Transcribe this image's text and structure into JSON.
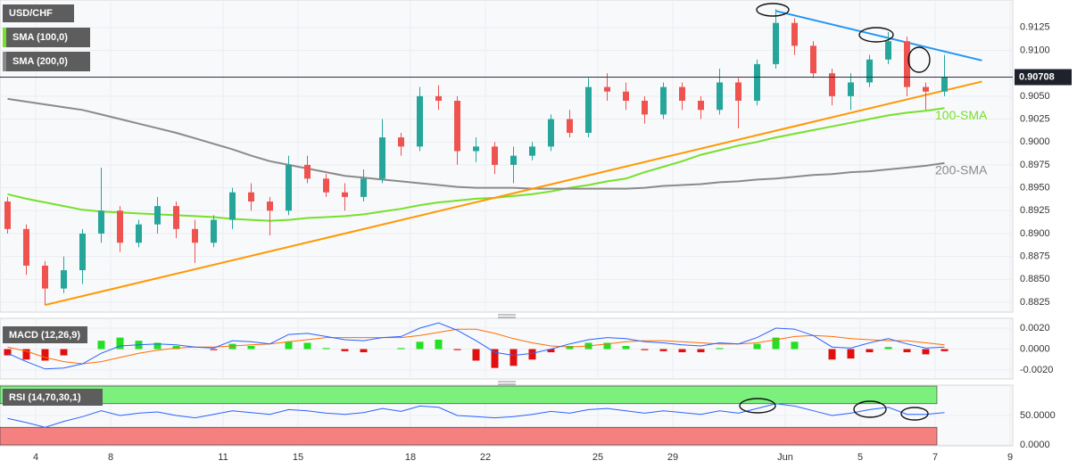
{
  "chart_data": {
    "type": "candlestick",
    "categories": [
      null,
      null,
      "4",
      null,
      null,
      null,
      "8",
      null,
      null,
      null,
      null,
      null,
      "11",
      null,
      null,
      null,
      "15",
      null,
      null,
      null,
      null,
      null,
      "18",
      null,
      null,
      null,
      "22",
      null,
      null,
      null,
      null,
      null,
      "25",
      null,
      null,
      null,
      "29",
      null,
      null,
      null,
      null,
      null,
      "Jun",
      null,
      null,
      null,
      "5",
      null,
      null,
      null,
      "7",
      null,
      null,
      null,
      "9"
    ],
    "candles": {
      "name": "USD/CHF",
      "up_color": "#26a69a",
      "down_color": "#ef5350",
      "ohlc": [
        [
          0.8935,
          0.894,
          0.89,
          0.8905
        ],
        [
          0.8905,
          0.891,
          0.8855,
          0.8865
        ],
        [
          0.8865,
          0.887,
          0.8822,
          0.884
        ],
        [
          0.884,
          0.8875,
          0.8835,
          0.886
        ],
        [
          0.886,
          0.8905,
          0.8845,
          0.89
        ],
        [
          0.89,
          0.8972,
          0.889,
          0.8925
        ],
        [
          0.8925,
          0.893,
          0.888,
          0.889
        ],
        [
          0.889,
          0.8915,
          0.8885,
          0.891
        ],
        [
          0.891,
          0.894,
          0.89,
          0.893
        ],
        [
          0.893,
          0.8935,
          0.8895,
          0.8905
        ],
        [
          0.8905,
          0.8915,
          0.8868,
          0.889
        ],
        [
          0.889,
          0.892,
          0.8885,
          0.8915
        ],
        [
          0.8915,
          0.895,
          0.8905,
          0.8945
        ],
        [
          0.8945,
          0.8955,
          0.8925,
          0.8935
        ],
        [
          0.8935,
          0.894,
          0.8898,
          0.8925
        ],
        [
          0.8925,
          0.8985,
          0.892,
          0.8975
        ],
        [
          0.8975,
          0.8985,
          0.8955,
          0.896
        ],
        [
          0.896,
          0.8965,
          0.894,
          0.8945
        ],
        [
          0.8945,
          0.8955,
          0.8925,
          0.894
        ],
        [
          0.894,
          0.897,
          0.8935,
          0.896
        ],
        [
          0.896,
          0.9025,
          0.8955,
          0.9005
        ],
        [
          0.9005,
          0.901,
          0.8985,
          0.8995
        ],
        [
          0.8995,
          0.906,
          0.899,
          0.905
        ],
        [
          0.905,
          0.9062,
          0.9035,
          0.9045
        ],
        [
          0.9045,
          0.905,
          0.8975,
          0.899
        ],
        [
          0.899,
          0.9005,
          0.8978,
          0.8995
        ],
        [
          0.8995,
          0.9,
          0.8965,
          0.8975
        ],
        [
          0.8975,
          0.8995,
          0.8955,
          0.8985
        ],
        [
          0.8985,
          0.9,
          0.898,
          0.8995
        ],
        [
          0.8995,
          0.903,
          0.899,
          0.9025
        ],
        [
          0.9025,
          0.9035,
          0.9005,
          0.901
        ],
        [
          0.901,
          0.907,
          0.9005,
          0.906
        ],
        [
          0.906,
          0.9075,
          0.9045,
          0.9055
        ],
        [
          0.9055,
          0.9065,
          0.9035,
          0.9045
        ],
        [
          0.9045,
          0.905,
          0.902,
          0.903
        ],
        [
          0.903,
          0.9065,
          0.9025,
          0.906
        ],
        [
          0.906,
          0.9065,
          0.9035,
          0.9045
        ],
        [
          0.9045,
          0.905,
          0.9025,
          0.9035
        ],
        [
          0.9035,
          0.908,
          0.903,
          0.9065
        ],
        [
          0.9065,
          0.907,
          0.9015,
          0.9045
        ],
        [
          0.9045,
          0.909,
          0.904,
          0.9085
        ],
        [
          0.9085,
          0.9145,
          0.908,
          0.913
        ],
        [
          0.913,
          0.9135,
          0.9095,
          0.9105
        ],
        [
          0.9105,
          0.911,
          0.907,
          0.9075
        ],
        [
          0.9075,
          0.908,
          0.904,
          0.905
        ],
        [
          0.905,
          0.9075,
          0.9035,
          0.9065
        ],
        [
          0.9065,
          0.9095,
          0.906,
          0.909
        ],
        [
          0.909,
          0.912,
          0.9085,
          0.911
        ],
        [
          0.911,
          0.9115,
          0.905,
          0.906
        ],
        [
          0.906,
          0.9065,
          0.9035,
          0.9055
        ],
        [
          0.9055,
          0.9095,
          0.905,
          0.90708
        ],
        null,
        null,
        null,
        null
      ]
    },
    "overlays": [
      {
        "name": "SMA (100,0)",
        "label": "100-SMA",
        "color": "#76e02a",
        "values": [
          0.8943,
          0.8938,
          0.8934,
          0.893,
          0.8926,
          0.8924,
          0.8923,
          0.8922,
          0.8921,
          0.892,
          0.8919,
          0.8918,
          0.8916,
          0.8915,
          0.8914,
          0.8915,
          0.8917,
          0.8918,
          0.8919,
          0.8921,
          0.8924,
          0.8927,
          0.8931,
          0.8934,
          0.8936,
          0.8938,
          0.8939,
          0.8941,
          0.8943,
          0.8946,
          0.895,
          0.8953,
          0.8957,
          0.896,
          0.8967,
          0.8973,
          0.8979,
          0.8986,
          0.8991,
          0.8996,
          0.9,
          0.9005,
          0.9009,
          0.9013,
          0.9017,
          0.9021,
          0.9025,
          0.9029,
          0.9032,
          0.9034,
          0.9037,
          null,
          null,
          null,
          null
        ]
      },
      {
        "name": "SMA (200,0)",
        "label": "200-SMA",
        "color": "#8a8a8a",
        "values": [
          0.9047,
          0.9044,
          0.9041,
          0.9038,
          0.9035,
          0.903,
          0.9025,
          0.902,
          0.9015,
          0.901,
          0.9004,
          0.8998,
          0.8992,
          0.8985,
          0.8979,
          0.8975,
          0.8971,
          0.8967,
          0.8963,
          0.8961,
          0.8959,
          0.8957,
          0.8955,
          0.8953,
          0.8951,
          0.895,
          0.895,
          0.895,
          0.8949,
          0.8949,
          0.8949,
          0.8949,
          0.8949,
          0.8949,
          0.895,
          0.8952,
          0.8953,
          0.8954,
          0.8956,
          0.8957,
          0.8959,
          0.896,
          0.8962,
          0.8964,
          0.8965,
          0.8967,
          0.8968,
          0.897,
          0.8972,
          0.8974,
          0.8977,
          null,
          null,
          null,
          null
        ]
      }
    ],
    "trend_lines": [
      {
        "color": "#ff9800",
        "values": [
          null,
          null,
          0.8822,
          null,
          null,
          null,
          null,
          null,
          null,
          null,
          null,
          null,
          null,
          null,
          null,
          null,
          null,
          null,
          null,
          null,
          null,
          null,
          null,
          null,
          null,
          null,
          null,
          null,
          null,
          null,
          null,
          null,
          null,
          null,
          null,
          null,
          null,
          null,
          null,
          null,
          null,
          null,
          null,
          null,
          null,
          null,
          null,
          null,
          null,
          null,
          null,
          null,
          0.9066,
          null,
          null
        ]
      },
      {
        "color": "#2196f3",
        "values": [
          null,
          null,
          null,
          null,
          null,
          null,
          null,
          null,
          null,
          null,
          null,
          null,
          null,
          null,
          null,
          null,
          null,
          null,
          null,
          null,
          null,
          null,
          null,
          null,
          null,
          null,
          null,
          null,
          null,
          null,
          null,
          null,
          null,
          null,
          null,
          null,
          null,
          null,
          null,
          null,
          null,
          0.9143,
          null,
          null,
          null,
          null,
          null,
          null,
          null,
          null,
          null,
          null,
          0.9089,
          null,
          null
        ]
      }
    ],
    "ylim": [
      0.88143,
      0.9155
    ],
    "yticks": [
      0.9125,
      {
        "value": 0.91,
        "label": "0.9100"
      },
      {
        "value": 0.905,
        "label": "0.9050"
      },
      0.9025,
      {
        "value": 0.9,
        "label": "0.9000"
      },
      0.8975,
      {
        "value": 0.895,
        "label": "0.8950"
      },
      0.8925,
      {
        "value": 0.89,
        "label": "0.8900"
      },
      0.8875,
      {
        "value": 0.885,
        "label": "0.8850"
      },
      0.8825
    ],
    "last_price": 0.90708,
    "grid": true,
    "macd": {
      "title": "MACD (12,26,9)",
      "ylim": [
        -0.00285,
        0.00294
      ],
      "yticks": [
        {
          "value": 0.002,
          "label": "0.0020"
        },
        {
          "value": 0,
          "label": "0.0000"
        },
        {
          "value": -0.002,
          "label": "-0.0020"
        }
      ],
      "macd": {
        "color": "#2962ff",
        "values": [
          -0.0004,
          -0.0012,
          -0.0019,
          -0.0018,
          -0.0014,
          -0.0004,
          0.0003,
          0.0004,
          0.0005,
          0.0004,
          0.0002,
          0.0001,
          0.0008,
          0.0007,
          0.0005,
          0.0014,
          0.0015,
          0.0012,
          0.0009,
          0.0008,
          0.0011,
          0.0012,
          0.002,
          0.0025,
          0.0018,
          0.0008,
          -0.0003,
          -0.0006,
          -0.0004,
          0.0,
          0.0005,
          0.0009,
          0.0011,
          0.001,
          0.0007,
          0.0006,
          0.0004,
          0.0003,
          0.0006,
          0.0005,
          0.0011,
          0.002,
          0.0019,
          0.0013,
          0.0002,
          0.0001,
          0.0006,
          0.001,
          0.0005,
          0.0001,
          0.0002,
          null,
          null,
          null,
          null
        ]
      },
      "signal": {
        "color": "#ff6d00",
        "values": [
          0.0002,
          -0.0002,
          -0.0008,
          -0.0012,
          -0.0014,
          -0.0012,
          -0.0008,
          -0.0004,
          -0.0001,
          0.0001,
          0.0002,
          0.0002,
          0.0003,
          0.0004,
          0.0005,
          0.0007,
          0.0009,
          0.0011,
          0.0011,
          0.0011,
          0.0011,
          0.0011,
          0.0013,
          0.0016,
          0.0019,
          0.0019,
          0.0015,
          0.001,
          0.0006,
          0.0003,
          0.0002,
          0.0003,
          0.0005,
          0.0007,
          0.0008,
          0.0008,
          0.0007,
          0.0006,
          0.0005,
          0.0005,
          0.0006,
          0.0009,
          0.0012,
          0.0013,
          0.0012,
          0.001,
          0.0009,
          0.0008,
          0.0008,
          0.0006,
          0.0004,
          null,
          null,
          null,
          null
        ]
      },
      "histogram": {
        "up_color": "#22e022",
        "down_color": "#e01010",
        "values": [
          -0.0006,
          -0.001,
          -0.0011,
          -0.0006,
          0.0,
          0.0008,
          0.0011,
          0.0008,
          0.0006,
          0.0003,
          0.0,
          -0.0001,
          0.0005,
          0.0003,
          0.0,
          0.0007,
          0.0006,
          0.0001,
          -0.0002,
          -0.0003,
          0.0,
          0.0001,
          0.0007,
          0.0009,
          -0.0001,
          -0.0011,
          -0.0018,
          -0.0016,
          -0.001,
          -0.0003,
          0.0003,
          0.0006,
          0.0006,
          0.0003,
          -0.0001,
          -0.0002,
          -0.0003,
          -0.0003,
          0.0001,
          0.0,
          0.0005,
          0.0011,
          0.0007,
          0.0,
          -0.001,
          -0.0009,
          -0.0003,
          0.0002,
          -0.0003,
          -0.0005,
          -0.0002,
          null,
          null,
          null,
          null
        ]
      }
    },
    "rsi": {
      "title": "RSI (14,70,30,1)",
      "ylim": [
        0,
        100
      ],
      "yticks": [
        {
          "value": 50,
          "label": "50.0000"
        },
        {
          "value": 0,
          "label": "0.0000"
        }
      ],
      "overbought": 70,
      "oversold": 30,
      "overbought_color": "#7cf07c",
      "oversold_color": "#f58080",
      "color": "#2962ff",
      "values": [
        45,
        38,
        30,
        40,
        48,
        58,
        50,
        54,
        56,
        50,
        46,
        52,
        58,
        55,
        52,
        60,
        58,
        54,
        52,
        55,
        62,
        57,
        66,
        64,
        50,
        48,
        46,
        48,
        52,
        57,
        54,
        60,
        62,
        58,
        54,
        58,
        55,
        52,
        58,
        54,
        62,
        70,
        66,
        58,
        50,
        54,
        60,
        64,
        52,
        52,
        55,
        null,
        null,
        null,
        null
      ]
    }
  }
}
